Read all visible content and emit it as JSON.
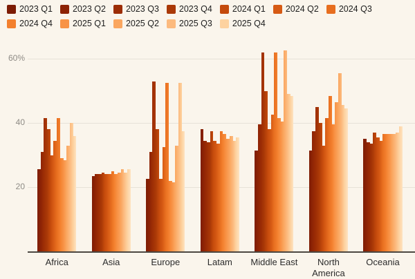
{
  "legend": {
    "items": [
      "2023 Q1",
      "2023 Q2",
      "2023 Q3",
      "2023 Q4",
      "2024 Q1",
      "2024 Q2",
      "2024 Q3",
      "2024 Q4",
      "2025 Q1",
      "2025 Q2",
      "2025 Q3",
      "2025 Q4"
    ]
  },
  "colors": {
    "background": "#faf5ec",
    "gridline": "#e7e2d8",
    "axis": "#4b4741",
    "tick_text": "#8e8b85",
    "x_label_text": "#2b2b2b",
    "legend_text": "#1d1d1d",
    "series": [
      "#7d1c04",
      "#8d2305",
      "#9c2d05",
      "#aa3907",
      "#c44a0c",
      "#d65a14",
      "#e76e1f",
      "#f3802e",
      "#f89346",
      "#faa65f",
      "#fcba7e",
      "#fdd2a0"
    ],
    "series_gradient_tail": "#fee3c1"
  },
  "y_axis": {
    "ticks": [
      "20",
      "40",
      "60%"
    ],
    "tick_values": [
      20,
      40,
      60
    ]
  },
  "chart_data": {
    "type": "bar",
    "title": "",
    "xlabel": "",
    "ylabel": "",
    "unit": "%",
    "ylim": [
      0,
      65
    ],
    "grid": true,
    "legend_position": "top",
    "categories": [
      "Africa",
      "Asia",
      "Europe",
      "Latam",
      "Middle East",
      "North America",
      "Oceania"
    ],
    "series": [
      {
        "name": "2023 Q1",
        "values": [
          25.5,
          23.5,
          22.5,
          38.0,
          31.5,
          31.5,
          35.0
        ]
      },
      {
        "name": "2023 Q2",
        "values": [
          31.0,
          24.0,
          31.0,
          34.5,
          39.5,
          37.5,
          34.0
        ]
      },
      {
        "name": "2023 Q3",
        "values": [
          41.5,
          24.0,
          53.0,
          34.0,
          62.0,
          45.0,
          33.5
        ]
      },
      {
        "name": "2023 Q4",
        "values": [
          38.0,
          24.5,
          38.0,
          37.5,
          50.0,
          40.0,
          37.0
        ]
      },
      {
        "name": "2024 Q1",
        "values": [
          30.0,
          24.0,
          22.5,
          34.5,
          38.0,
          33.0,
          35.5
        ]
      },
      {
        "name": "2024 Q2",
        "values": [
          34.5,
          24.0,
          32.5,
          33.5,
          42.5,
          41.5,
          34.5
        ]
      },
      {
        "name": "2024 Q3",
        "values": [
          41.5,
          25.0,
          52.5,
          37.5,
          62.0,
          48.5,
          36.5
        ]
      },
      {
        "name": "2024 Q4",
        "values": [
          29.0,
          24.0,
          22.0,
          36.5,
          41.5,
          39.5,
          36.5
        ]
      },
      {
        "name": "2025 Q1",
        "values": [
          28.5,
          24.5,
          21.5,
          35.0,
          40.5,
          46.5,
          36.5
        ]
      },
      {
        "name": "2025 Q2",
        "values": [
          33.0,
          25.5,
          33.0,
          36.0,
          62.5,
          55.5,
          36.5
        ]
      },
      {
        "name": "2025 Q3",
        "values": [
          40.0,
          24.5,
          52.5,
          34.5,
          49.0,
          45.5,
          37.0
        ]
      },
      {
        "name": "2025 Q4",
        "values": [
          36.0,
          25.5,
          37.5,
          35.5,
          48.5,
          44.5,
          39.0
        ]
      }
    ]
  }
}
